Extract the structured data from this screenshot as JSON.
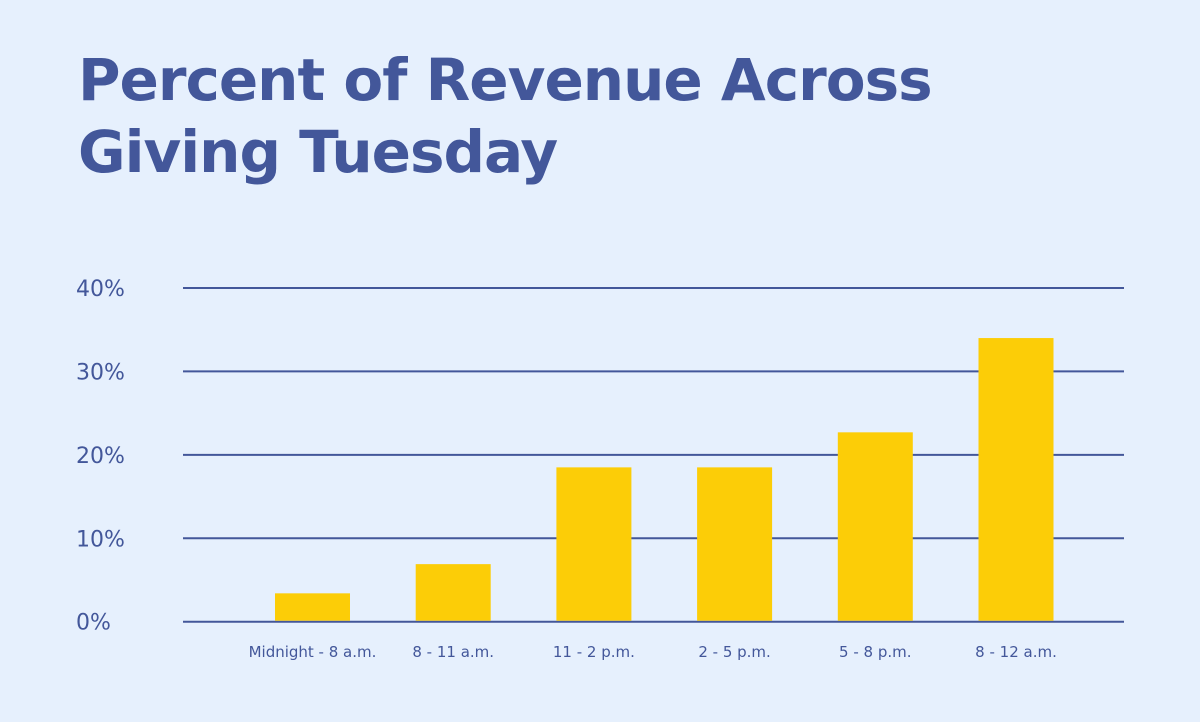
{
  "chart_data": {
    "type": "bar",
    "title": "Percent of Revenue Across Giving Tuesday",
    "xlabel": "",
    "ylabel": "",
    "categories": [
      "Midnight - 8 a.m.",
      "8 - 11 a.m.",
      "11 - 2 p.m.",
      "2 - 5 p.m.",
      "5 - 8 p.m.",
      "8 - 12 a.m."
    ],
    "values": [
      3.4,
      6.9,
      18.5,
      18.5,
      22.7,
      34.0
    ],
    "ylim": [
      0,
      40
    ],
    "yticks": [
      0,
      10,
      20,
      30,
      40
    ],
    "ytick_labels": [
      "0%",
      "10%",
      "20%",
      "30%",
      "40%"
    ],
    "grid": true,
    "colors": {
      "bar": "#fccd07",
      "grid": "#43579a",
      "text": "#43579a",
      "background": "#e6f0fd"
    }
  }
}
